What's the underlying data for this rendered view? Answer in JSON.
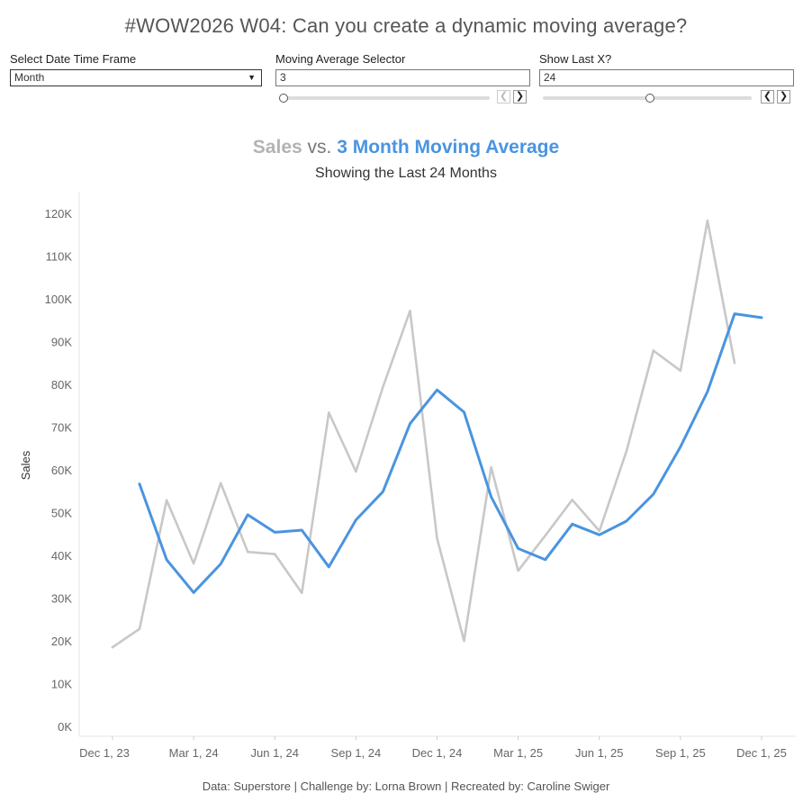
{
  "header": {
    "title": "#WOW2026 W04: Can you create a dynamic moving average?"
  },
  "controls": {
    "date_frame": {
      "label": "Select Date Time Frame",
      "value": "Month"
    },
    "moving_avg": {
      "label": "Moving Average Selector",
      "value": "3"
    },
    "show_last": {
      "label": "Show Last X?",
      "value": "24"
    }
  },
  "chart_title": {
    "sales": "Sales",
    "vs": "vs.",
    "ma": "3 Month Moving Average",
    "subtitle": "Showing the Last 24 Months"
  },
  "colors": {
    "sales": "#c8c8c8",
    "moving_average": "#4a94e0"
  },
  "footer": "Data: Superstore | Challenge by: Lorna Brown | Recreated by: Caroline Swiger",
  "chart_data": {
    "type": "line",
    "title": "Sales vs. 3 Month Moving Average",
    "subtitle": "Showing the Last 24 Months",
    "xlabel": "",
    "ylabel": "Sales",
    "ylim": [
      0,
      122000
    ],
    "yticks": [
      0,
      10000,
      20000,
      30000,
      40000,
      50000,
      60000,
      70000,
      80000,
      90000,
      100000,
      110000,
      120000
    ],
    "ytick_labels": [
      "0K",
      "10K",
      "20K",
      "30K",
      "40K",
      "50K",
      "60K",
      "70K",
      "80K",
      "90K",
      "100K",
      "110K",
      "120K"
    ],
    "xtick_index": [
      0,
      3,
      6,
      9,
      12,
      15,
      18,
      21,
      24
    ],
    "xtick_labels": [
      "Dec 1, 23",
      "Mar 1, 24",
      "Jun 1, 24",
      "Sep 1, 24",
      "Dec 1, 24",
      "Mar 1, 25",
      "Jun 1, 25",
      "Sep 1, 25",
      "Dec 1, 25"
    ],
    "x": [
      "2023-12",
      "2024-01",
      "2024-02",
      "2024-03",
      "2024-04",
      "2024-05",
      "2024-06",
      "2024-07",
      "2024-08",
      "2024-09",
      "2024-10",
      "2024-11",
      "2024-12",
      "2025-01",
      "2025-02",
      "2025-03",
      "2025-04",
      "2025-05",
      "2025-06",
      "2025-07",
      "2025-08",
      "2025-09",
      "2025-10",
      "2025-11",
      "2025-12"
    ],
    "series": [
      {
        "name": "Sales",
        "values": [
          18500,
          22800,
          52900,
          38100,
          56900,
          40800,
          40300,
          31200,
          73400,
          59600,
          79400,
          97200,
          44000,
          20000,
          60600,
          36400,
          44600,
          53000,
          45700,
          64300,
          87900,
          83200,
          118300,
          85000,
          null
        ]
      },
      {
        "name": "3 Month Moving Average",
        "values": [
          null,
          56700,
          39000,
          31300,
          38000,
          49500,
          45400,
          45900,
          37300,
          48300,
          54900,
          70800,
          78700,
          73500,
          53700,
          41600,
          39000,
          47300,
          44800,
          48000,
          54300,
          65400,
          78300,
          96500,
          95600
        ]
      }
    ]
  }
}
